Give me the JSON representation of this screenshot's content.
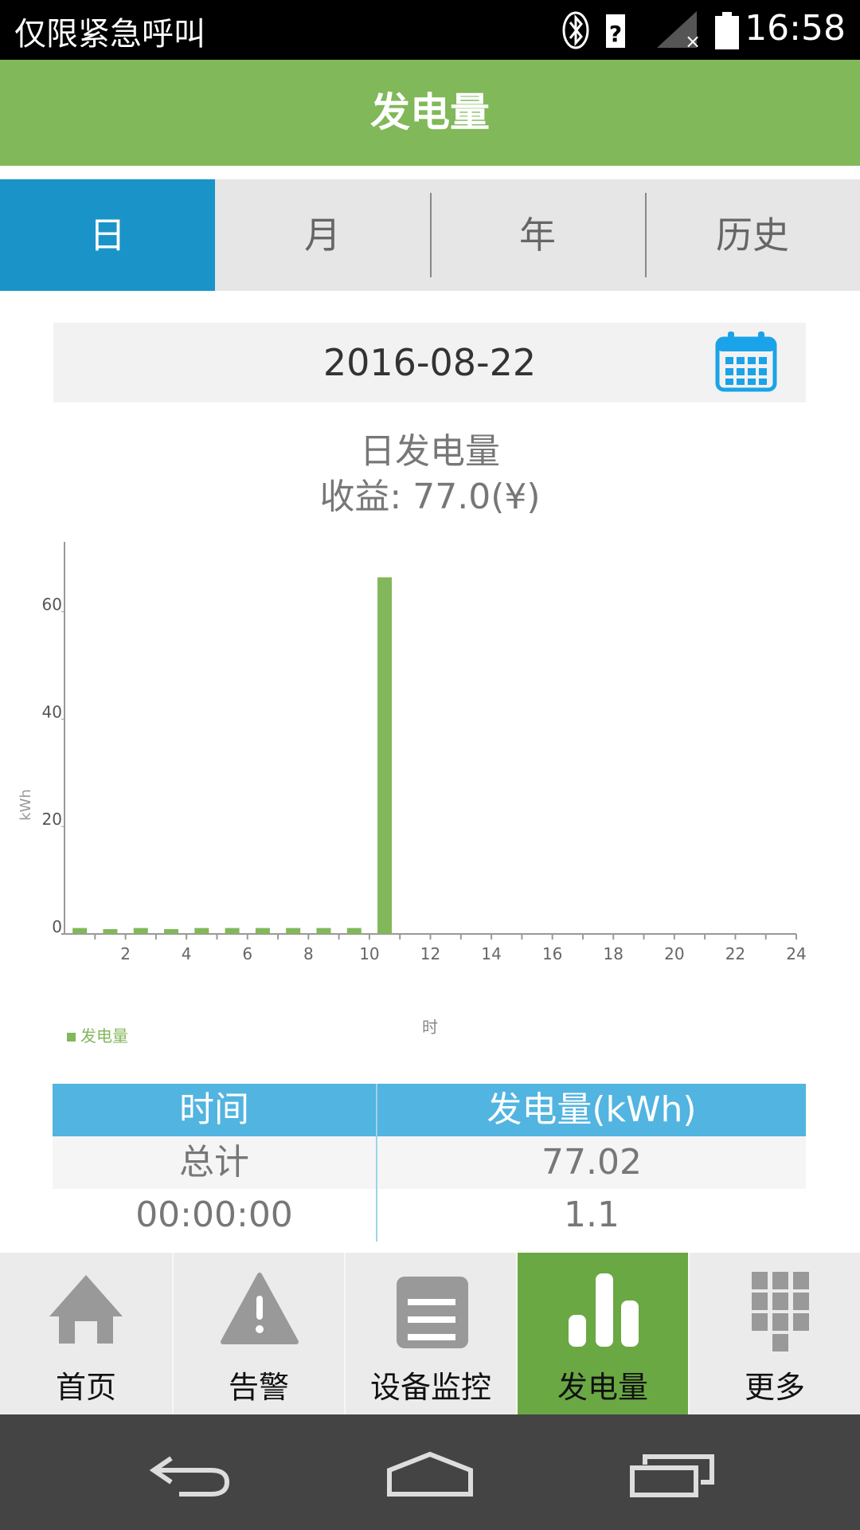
{
  "status_bar": {
    "carrier": "仅限紧急呼叫",
    "time": "16:58",
    "icons": [
      "bluetooth-icon",
      "no-sim-icon",
      "signal-icon",
      "battery-icon"
    ]
  },
  "header": {
    "title": "发电量"
  },
  "tabs": [
    {
      "label": "日",
      "active": true
    },
    {
      "label": "月"
    },
    {
      "label": "年"
    },
    {
      "label": "历史"
    }
  ],
  "date_picker": {
    "value": "2016-08-22",
    "icon": "calendar-icon"
  },
  "summary": {
    "title": "日发电量",
    "revenue": "收益: 77.0(¥)"
  },
  "chart_data": {
    "type": "bar",
    "xlabel": "时",
    "ylabel": "kWh",
    "x": [
      0,
      1,
      2,
      3,
      4,
      5,
      6,
      7,
      8,
      9,
      10
    ],
    "values": [
      1.1,
      0.9,
      1.1,
      0.9,
      1.1,
      1.1,
      1.1,
      1.1,
      1.1,
      1.1,
      66.4
    ],
    "xlim": [
      0,
      24
    ],
    "ylim": [
      0,
      73
    ],
    "xticks": [
      "2",
      "4",
      "6",
      "8",
      "10",
      "12",
      "14",
      "16",
      "18",
      "20",
      "22",
      "24"
    ],
    "yticks": [
      "0",
      "20",
      "40",
      "60"
    ],
    "series": [
      {
        "name": "发电量",
        "color": "#82b75b"
      }
    ],
    "legend": "bottom-left",
    "grid": false
  },
  "table": {
    "headers": [
      "时间",
      "发电量(kWh)"
    ],
    "rows": [
      [
        "总计",
        "77.02"
      ],
      [
        "00:00:00",
        "1.1"
      ]
    ]
  },
  "bottom_nav": [
    {
      "label": "首页",
      "icon": "home-icon"
    },
    {
      "label": "告警",
      "icon": "warning-icon"
    },
    {
      "label": "设备监控",
      "icon": "device-list-icon"
    },
    {
      "label": "发电量",
      "icon": "bar-chart-icon",
      "active": true
    },
    {
      "label": "更多",
      "icon": "grid-icon"
    }
  ],
  "colors": {
    "header": "#80b85a",
    "tab_active": "#1a94c8",
    "table_header": "#52b4e0",
    "nav_active": "#6aa843"
  }
}
